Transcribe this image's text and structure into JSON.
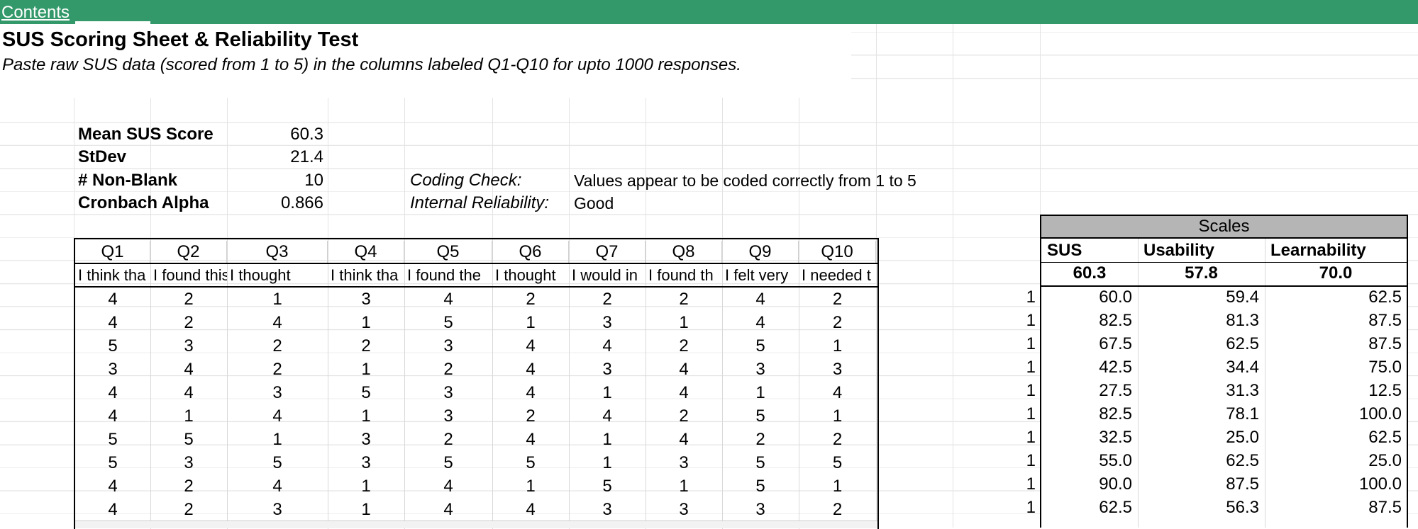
{
  "nav": {
    "contents_link": "Contents"
  },
  "sheet": {
    "title": "SUS Scoring Sheet & Reliability Test",
    "subtitle": "Paste raw SUS data (scored from 1 to 5) in the columns labeled Q1-Q10 for upto 1000 responses."
  },
  "stats": [
    {
      "label": "Mean SUS Score",
      "value": "60.3"
    },
    {
      "label": "StDev",
      "value": "21.4"
    },
    {
      "label": "# Non-Blank",
      "value": "10"
    },
    {
      "label": "Cronbach Alpha",
      "value": "0.866"
    }
  ],
  "checks": [
    {
      "label": "Coding Check:",
      "value": "Values appear to be coded correctly from 1 to 5"
    },
    {
      "label": "Internal Reliability:",
      "value": "Good"
    }
  ],
  "table": {
    "headers": [
      "Q1",
      "Q2",
      "Q3",
      "Q4",
      "Q5",
      "Q6",
      "Q7",
      "Q8",
      "Q9",
      "Q10"
    ],
    "descriptions": [
      "I think tha",
      "I found this s",
      "I thought",
      "I think tha",
      "I found the",
      "I thought",
      "I would in",
      "I found th",
      "I felt very",
      "I needed t"
    ],
    "rows": [
      [
        "4",
        "2",
        "1",
        "3",
        "4",
        "2",
        "2",
        "2",
        "4",
        "2"
      ],
      [
        "4",
        "2",
        "4",
        "1",
        "5",
        "1",
        "3",
        "1",
        "4",
        "2"
      ],
      [
        "5",
        "3",
        "2",
        "2",
        "3",
        "4",
        "4",
        "2",
        "5",
        "1"
      ],
      [
        "3",
        "4",
        "2",
        "1",
        "2",
        "4",
        "3",
        "4",
        "3",
        "3"
      ],
      [
        "4",
        "4",
        "3",
        "5",
        "3",
        "4",
        "1",
        "4",
        "1",
        "4"
      ],
      [
        "4",
        "1",
        "4",
        "1",
        "3",
        "2",
        "4",
        "2",
        "5",
        "1"
      ],
      [
        "5",
        "5",
        "1",
        "3",
        "2",
        "4",
        "1",
        "4",
        "2",
        "2"
      ],
      [
        "5",
        "3",
        "5",
        "3",
        "5",
        "5",
        "1",
        "3",
        "5",
        "5"
      ],
      [
        "4",
        "2",
        "4",
        "1",
        "4",
        "1",
        "5",
        "1",
        "5",
        "1"
      ],
      [
        "4",
        "2",
        "3",
        "1",
        "4",
        "4",
        "3",
        "3",
        "3",
        "2"
      ]
    ],
    "row_flags": [
      "1",
      "1",
      "1",
      "1",
      "1",
      "1",
      "1",
      "1",
      "1",
      "1"
    ]
  },
  "scales": {
    "title": "Scales",
    "columns": [
      "SUS",
      "Usability",
      "Learnability"
    ],
    "means": [
      "60.3",
      "57.8",
      "70.0"
    ],
    "rows": [
      [
        "60.0",
        "59.4",
        "62.5"
      ],
      [
        "82.5",
        "81.3",
        "87.5"
      ],
      [
        "67.5",
        "62.5",
        "87.5"
      ],
      [
        "42.5",
        "34.4",
        "75.0"
      ],
      [
        "27.5",
        "31.3",
        "12.5"
      ],
      [
        "82.5",
        "78.1",
        "100.0"
      ],
      [
        "32.5",
        "25.0",
        "62.5"
      ],
      [
        "55.0",
        "62.5",
        "25.0"
      ],
      [
        "90.0",
        "87.5",
        "100.0"
      ],
      [
        "62.5",
        "56.3",
        "87.5"
      ]
    ]
  }
}
